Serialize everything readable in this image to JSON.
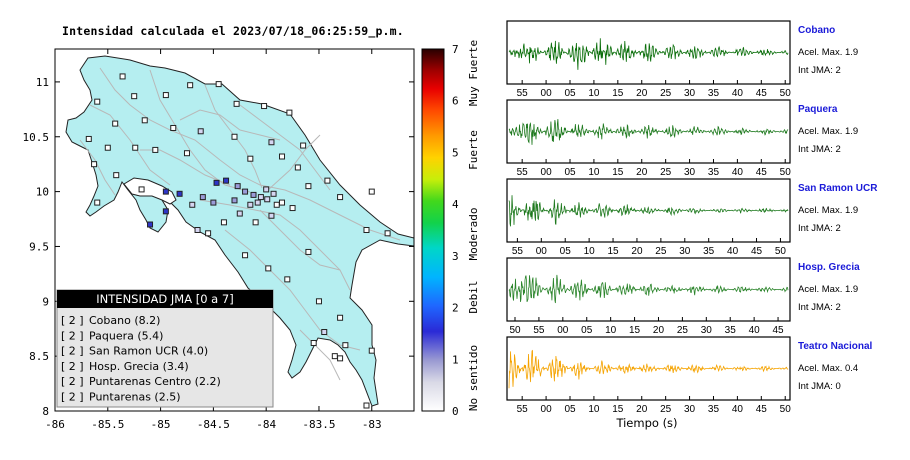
{
  "title": "Intensidad calculada el 2023/07/18_06:25:59_p.m.",
  "map": {
    "x_ticks": [
      "-86",
      "-85.5",
      "-85",
      "-84.5",
      "-84",
      "-83.5",
      "-83"
    ],
    "y_ticks": [
      "11",
      "10.5",
      "10",
      "9.5",
      "9",
      "8.5",
      "8"
    ],
    "legend_title": "INTENSIDAD JMA [0 a 7]",
    "legend_items": [
      {
        "level": "[ 2 ]",
        "label": "Cobano (8.2)"
      },
      {
        "level": "[ 2 ]",
        "label": "Paquera (5.4)"
      },
      {
        "level": "[ 2 ]",
        "label": "San Ramon UCR (4.0)"
      },
      {
        "level": "[ 2 ]",
        "label": "Hosp. Grecia (3.4)"
      },
      {
        "level": "[ 2 ]",
        "label": "Puntarenas Centro (2.2)"
      },
      {
        "level": "[ 2 ]",
        "label": "Puntarenas (2.5)"
      }
    ]
  },
  "colorbar": {
    "ticks": [
      "7",
      "6",
      "5",
      "4",
      "3",
      "2",
      "1",
      "0"
    ],
    "category_labels": [
      "Muy Fuerte",
      "Fuerte",
      "Moderado",
      "Debil",
      "No sentido"
    ]
  },
  "waveforms": {
    "xlabel": "Tiempo (s)",
    "panels": [
      {
        "name": "Cobano",
        "accel": "Acel. Max. 1.9",
        "jma": "Int JMA: 2",
        "color": "#0a6e0a",
        "ticks": [
          "55",
          "00",
          "05",
          "10",
          "15",
          "20",
          "25",
          "30",
          "35",
          "40",
          "45",
          "50"
        ],
        "first_offset": 0.3
      },
      {
        "name": "Paquera",
        "accel": "Acel. Max. 1.9",
        "jma": "Int JMA: 2",
        "color": "#1f7a1f",
        "ticks": [
          "55",
          "00",
          "05",
          "10",
          "15",
          "20",
          "25",
          "30",
          "35",
          "40",
          "45",
          "50"
        ],
        "first_offset": 0.3
      },
      {
        "name": "San Ramon UCR",
        "accel": "Acel. Max. 1.9",
        "jma": "Int JMA: 2",
        "color": "#1f7a1f",
        "ticks": [
          "55",
          "00",
          "05",
          "10",
          "15",
          "20",
          "25",
          "30",
          "35",
          "40",
          "45",
          "50"
        ],
        "first_offset": 0.1
      },
      {
        "name": "Hosp. Grecia",
        "accel": "Acel. Max. 1.9",
        "jma": "Int JMA: 2",
        "color": "#2a842a",
        "ticks": [
          "50",
          "55",
          "00",
          "05",
          "10",
          "15",
          "20",
          "25",
          "30",
          "35",
          "40",
          "45"
        ],
        "first_offset": 0.0
      },
      {
        "name": "Teatro Nacional",
        "accel": "Acel. Max. 0.4",
        "jma": "Int JMA: 0",
        "color": "#f5a300",
        "ticks": [
          "55",
          "00",
          "05",
          "10",
          "15",
          "20",
          "25",
          "30",
          "35",
          "40",
          "45",
          "50"
        ],
        "first_offset": 0.3
      }
    ]
  },
  "chart_data": [
    {
      "type": "scatter",
      "title": "Intensidad calculada el 2023/07/18_06:25:59_p.m.",
      "xlim": [
        -86,
        -82.6
      ],
      "ylim": [
        8,
        11.3
      ],
      "x_ticks": [
        -86,
        -85.5,
        -85,
        -84.5,
        -84,
        -83.5,
        -83
      ],
      "y_ticks": [
        11,
        10.5,
        10,
        9.5,
        9,
        8.5,
        8
      ],
      "legend": "bottom-left",
      "stations": [
        {
          "lon": -85.36,
          "lat": 11.05,
          "i": 0
        },
        {
          "lon": -85.6,
          "lat": 10.82,
          "i": 0
        },
        {
          "lon": -85.25,
          "lat": 10.87,
          "i": 0
        },
        {
          "lon": -84.95,
          "lat": 10.88,
          "i": 0
        },
        {
          "lon": -84.72,
          "lat": 10.97,
          "i": 0
        },
        {
          "lon": -84.45,
          "lat": 10.98,
          "i": 0
        },
        {
          "lon": -84.28,
          "lat": 10.8,
          "i": 0
        },
        {
          "lon": -84.02,
          "lat": 10.78,
          "i": 0
        },
        {
          "lon": -83.78,
          "lat": 10.72,
          "i": 0
        },
        {
          "lon": -85.43,
          "lat": 10.62,
          "i": 0
        },
        {
          "lon": -85.15,
          "lat": 10.65,
          "i": 0
        },
        {
          "lon": -84.88,
          "lat": 10.58,
          "i": 0
        },
        {
          "lon": -84.62,
          "lat": 10.55,
          "i": 1
        },
        {
          "lon": -84.3,
          "lat": 10.5,
          "i": 0
        },
        {
          "lon": -83.95,
          "lat": 10.45,
          "i": 1
        },
        {
          "lon": -83.65,
          "lat": 10.42,
          "i": 0
        },
        {
          "lon": -85.68,
          "lat": 10.48,
          "i": 0
        },
        {
          "lon": -85.5,
          "lat": 10.4,
          "i": 0
        },
        {
          "lon": -85.24,
          "lat": 10.4,
          "i": 0
        },
        {
          "lon": -85.05,
          "lat": 10.38,
          "i": 0
        },
        {
          "lon": -84.75,
          "lat": 10.35,
          "i": 0
        },
        {
          "lon": -84.15,
          "lat": 10.3,
          "i": 0
        },
        {
          "lon": -83.85,
          "lat": 10.32,
          "i": 0
        },
        {
          "lon": -83.7,
          "lat": 10.22,
          "i": 0
        },
        {
          "lon": -85.63,
          "lat": 10.25,
          "i": 0
        },
        {
          "lon": -85.42,
          "lat": 10.15,
          "i": 0
        },
        {
          "lon": -85.18,
          "lat": 10.02,
          "i": 0
        },
        {
          "lon": -84.95,
          "lat": 10.0,
          "i": 3
        },
        {
          "lon": -84.82,
          "lat": 9.98,
          "i": 3
        },
        {
          "lon": -84.47,
          "lat": 10.08,
          "i": 3
        },
        {
          "lon": -84.38,
          "lat": 10.1,
          "i": 3
        },
        {
          "lon": -84.27,
          "lat": 10.05,
          "i": 2
        },
        {
          "lon": -84.2,
          "lat": 10.0,
          "i": 2
        },
        {
          "lon": -84.12,
          "lat": 9.97,
          "i": 2
        },
        {
          "lon": -84.05,
          "lat": 9.95,
          "i": 1
        },
        {
          "lon": -83.99,
          "lat": 9.93,
          "i": 1
        },
        {
          "lon": -83.93,
          "lat": 9.98,
          "i": 1
        },
        {
          "lon": -84.0,
          "lat": 10.02,
          "i": 1
        },
        {
          "lon": -84.08,
          "lat": 9.9,
          "i": 1
        },
        {
          "lon": -84.15,
          "lat": 9.88,
          "i": 1
        },
        {
          "lon": -83.9,
          "lat": 9.88,
          "i": 0
        },
        {
          "lon": -83.85,
          "lat": 9.9,
          "i": 0
        },
        {
          "lon": -84.3,
          "lat": 9.92,
          "i": 2
        },
        {
          "lon": -84.5,
          "lat": 9.9,
          "i": 2
        },
        {
          "lon": -84.6,
          "lat": 9.95,
          "i": 2
        },
        {
          "lon": -84.7,
          "lat": 9.88,
          "i": 1
        },
        {
          "lon": -84.25,
          "lat": 9.8,
          "i": 1
        },
        {
          "lon": -83.95,
          "lat": 9.78,
          "i": 1
        },
        {
          "lon": -84.1,
          "lat": 9.72,
          "i": 0
        },
        {
          "lon": -83.75,
          "lat": 9.85,
          "i": 0
        },
        {
          "lon": -83.6,
          "lat": 10.05,
          "i": 0
        },
        {
          "lon": -83.42,
          "lat": 10.1,
          "i": 0
        },
        {
          "lon": -83.3,
          "lat": 9.95,
          "i": 0
        },
        {
          "lon": -83.0,
          "lat": 10.0,
          "i": 0
        },
        {
          "lon": -83.05,
          "lat": 9.65,
          "i": 0
        },
        {
          "lon": -82.85,
          "lat": 9.62,
          "i": 0
        },
        {
          "lon": -83.6,
          "lat": 9.45,
          "i": 0
        },
        {
          "lon": -84.55,
          "lat": 9.62,
          "i": 0
        },
        {
          "lon": -84.2,
          "lat": 9.42,
          "i": 0
        },
        {
          "lon": -83.98,
          "lat": 9.3,
          "i": 0
        },
        {
          "lon": -83.8,
          "lat": 9.2,
          "i": 0
        },
        {
          "lon": -83.5,
          "lat": 9.0,
          "i": 0
        },
        {
          "lon": -83.3,
          "lat": 8.85,
          "i": 0
        },
        {
          "lon": -83.45,
          "lat": 8.72,
          "i": 1
        },
        {
          "lon": -83.55,
          "lat": 8.62,
          "i": 0
        },
        {
          "lon": -83.25,
          "lat": 8.6,
          "i": 0
        },
        {
          "lon": -83.0,
          "lat": 8.55,
          "i": 0
        },
        {
          "lon": -83.35,
          "lat": 8.5,
          "i": 0
        },
        {
          "lon": -84.95,
          "lat": 9.82,
          "i": 3
        },
        {
          "lon": -85.1,
          "lat": 9.7,
          "i": 3
        },
        {
          "lon": -84.65,
          "lat": 9.65,
          "i": 1
        },
        {
          "lon": -85.6,
          "lat": 9.9,
          "i": 0
        },
        {
          "lon": -84.4,
          "lat": 9.72,
          "i": 0
        },
        {
          "lon": -83.3,
          "lat": 8.48,
          "i": 0
        },
        {
          "lon": -83.05,
          "lat": 8.05,
          "i": 0
        }
      ]
    },
    {
      "type": "line",
      "title": "Cobano",
      "xlabel": "Tiempo (s)",
      "x_ticks": [
        "55",
        "00",
        "05",
        "10",
        "15",
        "20",
        "25",
        "30",
        "35",
        "40",
        "45",
        "50"
      ],
      "series": [
        {
          "name": "Cobano",
          "values": [
            0.05,
            0.42,
            -0.48,
            0.6,
            -0.55,
            0.45,
            -0.38,
            0.3,
            -0.28,
            0.22,
            -0.18,
            0.14,
            -0.1
          ]
        }
      ]
    },
    {
      "type": "line",
      "title": "Paquera",
      "xlabel": "Tiempo (s)",
      "x_ticks": [
        "55",
        "00",
        "05",
        "10",
        "15",
        "20",
        "25",
        "30",
        "35",
        "40",
        "45",
        "50"
      ],
      "series": [
        {
          "name": "Paquera",
          "values": [
            0.1,
            0.45,
            -0.5,
            0.35,
            -0.3,
            0.28,
            -0.25,
            0.22,
            -0.18,
            0.16,
            -0.12,
            0.12,
            -0.1
          ]
        }
      ]
    },
    {
      "type": "line",
      "title": "San Ramon UCR",
      "xlabel": "Tiempo (s)",
      "x_ticks": [
        "55",
        "00",
        "05",
        "10",
        "15",
        "20",
        "25",
        "30",
        "35",
        "40",
        "45",
        "50"
      ],
      "series": [
        {
          "name": "San Ramon UCR",
          "values": [
            0.7,
            -0.6,
            0.45,
            -0.35,
            0.28,
            -0.22,
            0.18,
            -0.15,
            0.12,
            -0.1,
            0.09,
            -0.08,
            0.07
          ]
        }
      ]
    },
    {
      "type": "line",
      "title": "Hosp. Grecia",
      "xlabel": "Tiempo (s)",
      "x_ticks": [
        "50",
        "55",
        "00",
        "05",
        "10",
        "15",
        "20",
        "25",
        "30",
        "35",
        "40",
        "45"
      ],
      "series": [
        {
          "name": "Hosp. Grecia",
          "values": [
            0.3,
            0.55,
            -0.5,
            0.4,
            -0.35,
            0.3,
            -0.25,
            0.2,
            -0.18,
            0.15,
            -0.12,
            0.1,
            -0.09
          ]
        }
      ]
    },
    {
      "type": "line",
      "title": "Teatro Nacional",
      "xlabel": "Tiempo (s)",
      "x_ticks": [
        "55",
        "00",
        "05",
        "10",
        "15",
        "20",
        "25",
        "30",
        "35",
        "40",
        "45",
        "50"
      ],
      "series": [
        {
          "name": "Teatro Nacional",
          "values": [
            0.85,
            -0.7,
            0.5,
            -0.35,
            0.28,
            -0.22,
            0.2,
            -0.18,
            0.15,
            -0.12,
            0.1,
            -0.09,
            0.08
          ]
        }
      ]
    }
  ]
}
